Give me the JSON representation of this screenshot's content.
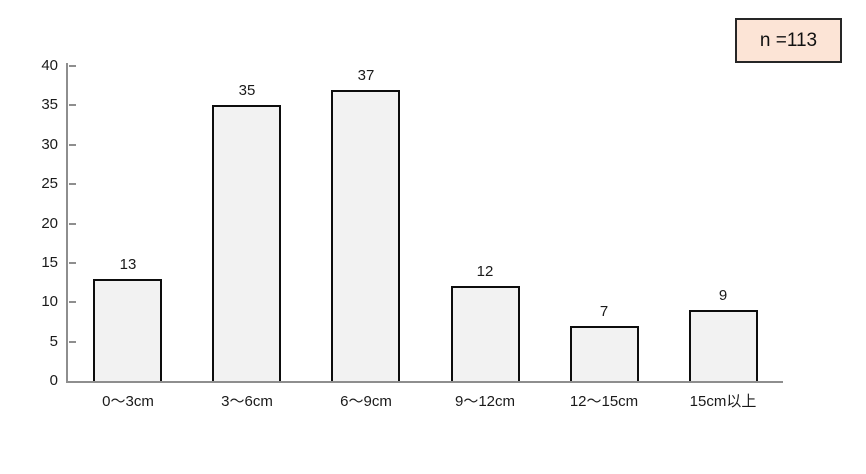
{
  "annotation": {
    "label": "n =113",
    "bg_color": "#fce4d6",
    "border_color": "#262626"
  },
  "chart_data": {
    "type": "bar",
    "title": "",
    "xlabel": "",
    "ylabel": "",
    "categories": [
      "0～3cm",
      "3～6cm",
      "6～9cm",
      "9～12cm",
      "12～15cm",
      "15cm以上"
    ],
    "values": [
      13,
      35,
      37,
      12,
      7,
      9
    ],
    "ylim": [
      0,
      40
    ],
    "ytick_step": 5,
    "yticks": [
      0,
      5,
      10,
      15,
      20,
      25,
      30,
      35,
      40
    ],
    "data_labels": true,
    "grid": false,
    "legend": "none",
    "bar_fill": "#f2f2f2",
    "bar_border": "#0d0d0d",
    "axis_color": "#8e8e8e",
    "text_color": "#1a1a1a"
  }
}
